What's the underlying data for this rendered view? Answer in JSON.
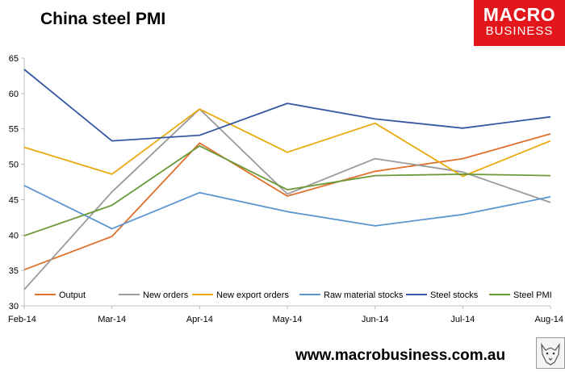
{
  "page": {
    "title": "China steel PMI",
    "logo_line1": "MACRO",
    "logo_line2": "BUSINESS",
    "website": "www.macrobusiness.com.au"
  },
  "chart_data": {
    "type": "line",
    "title": "China steel PMI",
    "categories": [
      "Feb-14",
      "Mar-14",
      "Apr-14",
      "May-14",
      "Jun-14",
      "Jul-14",
      "Aug-14"
    ],
    "ylim": [
      30,
      65
    ],
    "yticks": [
      30,
      35,
      40,
      45,
      50,
      55,
      60,
      65
    ],
    "grid": false,
    "legend_position": "bottom-inside",
    "series": [
      {
        "name": "Output",
        "color": "#e0702b",
        "values": [
          35.1,
          39.8,
          53.0,
          45.5,
          49.0,
          50.8,
          54.3
        ]
      },
      {
        "name": "New orders",
        "color": "#9a9a9a",
        "values": [
          32.3,
          46.1,
          57.8,
          45.8,
          50.8,
          48.9,
          44.6
        ]
      },
      {
        "name": "New export orders",
        "color": "#e8aa0c",
        "values": [
          52.4,
          48.6,
          57.8,
          51.7,
          55.8,
          48.3,
          53.3
        ]
      },
      {
        "name": "Raw material stocks",
        "color": "#5b96d1",
        "values": [
          47.0,
          40.9,
          46.0,
          43.3,
          41.3,
          42.9,
          45.4
        ]
      },
      {
        "name": "Steel stocks",
        "color": "#3558a3",
        "values": [
          63.4,
          53.3,
          54.1,
          58.6,
          56.4,
          55.1,
          56.7
        ]
      },
      {
        "name": "Steel PMI",
        "color": "#6a9a37",
        "values": [
          39.9,
          44.2,
          52.6,
          46.4,
          48.4,
          48.6,
          48.4
        ]
      }
    ]
  }
}
